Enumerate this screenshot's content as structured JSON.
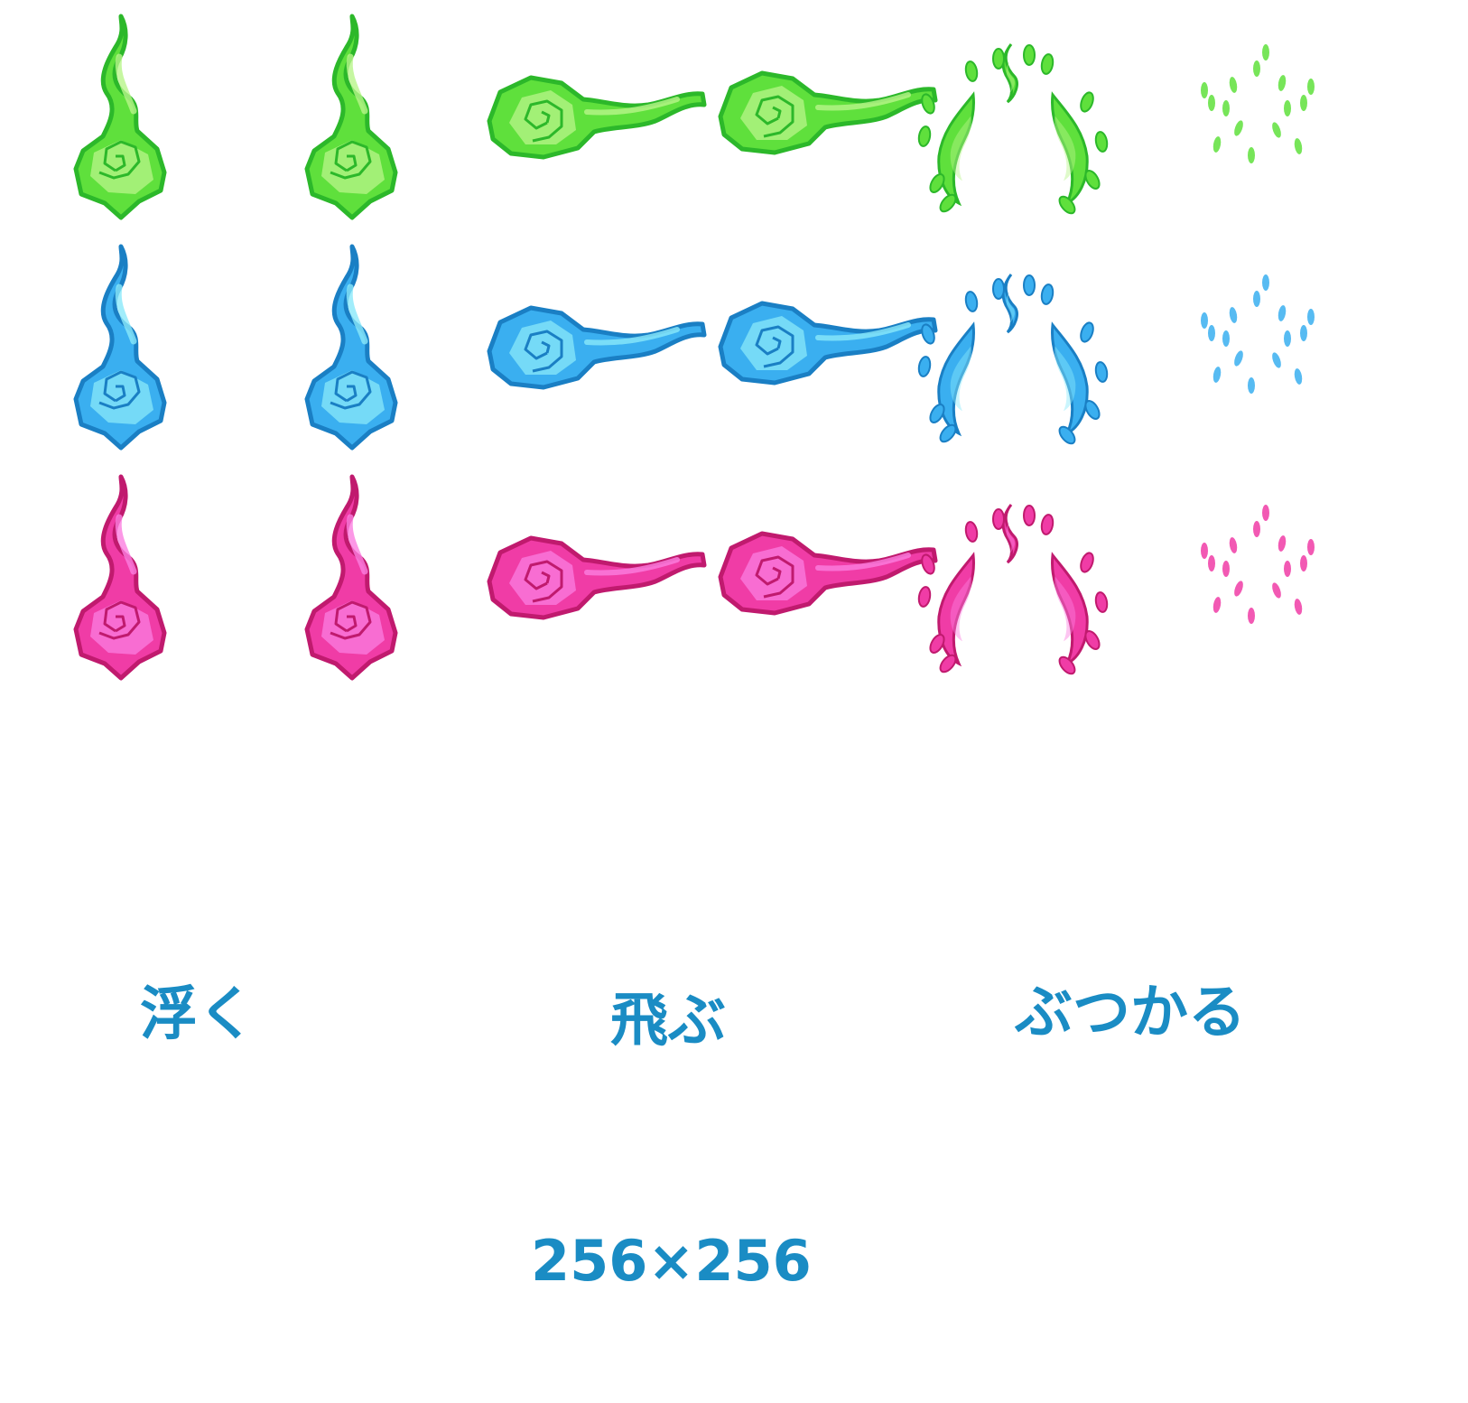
{
  "variants": [
    {
      "name": "green",
      "fill": "#5fe03c",
      "light": "#b8f58a",
      "outline": "#2cb82a"
    },
    {
      "name": "blue",
      "fill": "#3aaff0",
      "light": "#8ae8fa",
      "outline": "#1a7fc4"
    },
    {
      "name": "pink",
      "fill": "#f03ca6",
      "light": "#fb7ee0",
      "outline": "#c01a6e"
    }
  ],
  "labels": {
    "float": "浮く",
    "fly": "飛ぶ",
    "hit": "ぶつかる",
    "size": "256×256"
  },
  "label_color": "#1a8cc4",
  "background": "#ffffff"
}
